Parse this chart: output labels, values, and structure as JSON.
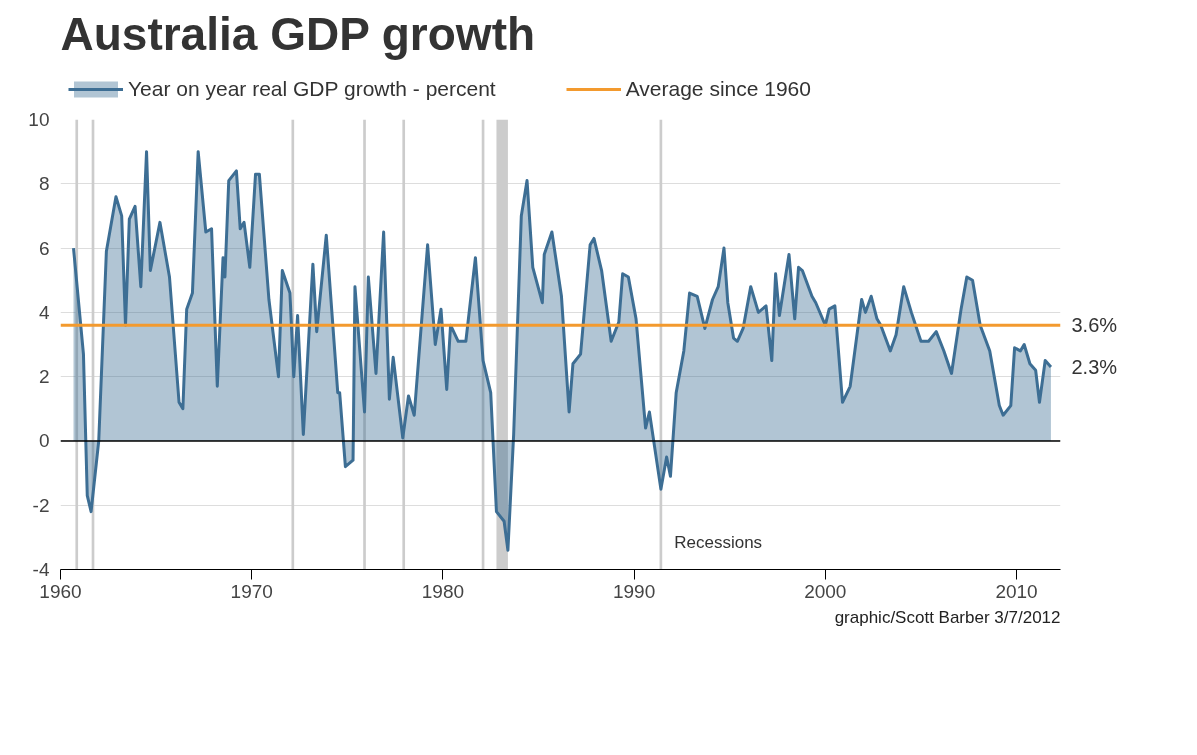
{
  "chart_data": {
    "type": "area",
    "title": "Australia GDP growth",
    "series": [
      {
        "name": "Year on year real GDP growth - percent",
        "color": "#3d6e94",
        "x": [
          1960.68,
          1961.2,
          1961.4,
          1961.6,
          1962.0,
          1962.4,
          1962.9,
          1963.2,
          1963.4,
          1963.6,
          1963.9,
          1964.2,
          1964.5,
          1964.7,
          1965.2,
          1965.7,
          1966.2,
          1966.4,
          1966.6,
          1966.9,
          1967.2,
          1967.6,
          1967.9,
          1968.2,
          1968.5,
          1968.6,
          1968.8,
          1969.2,
          1969.4,
          1969.6,
          1969.9,
          1970.2,
          1970.4,
          1970.9,
          1971.4,
          1971.6,
          1972.0,
          1972.2,
          1972.4,
          1972.7,
          1973.2,
          1973.4,
          1973.9,
          1974.5,
          1974.6,
          1974.9,
          1975.3,
          1975.4,
          1975.9,
          1976.1,
          1976.5,
          1976.9,
          1977.2,
          1977.4,
          1977.9,
          1978.2,
          1978.5,
          1979.2,
          1979.6,
          1979.9,
          1980.2,
          1980.4,
          1980.8,
          1981.2,
          1981.7,
          1982.1,
          1982.5,
          1982.8,
          1983.2,
          1983.4,
          1983.7,
          1984.1,
          1984.4,
          1984.7,
          1985.2,
          1985.3,
          1985.7,
          1986.2,
          1986.6,
          1986.8,
          1987.2,
          1987.7,
          1987.9,
          1988.3,
          1988.8,
          1989.2,
          1989.4,
          1989.7,
          1990.1,
          1990.6,
          1990.8,
          1991.4,
          1991.7,
          1991.9,
          1992.2,
          1992.6,
          1992.9,
          1993.3,
          1993.7,
          1994.1,
          1994.4,
          1994.7,
          1994.9,
          1995.2,
          1995.4,
          1995.7,
          1996.1,
          1996.5,
          1996.9,
          1997.2,
          1997.4,
          1997.6,
          1998.1,
          1998.4,
          1998.6,
          1998.8,
          1999.3,
          1999.5,
          2000.0,
          2000.2,
          2000.5,
          2000.9,
          2001.3,
          2001.9,
          2002.1,
          2002.4,
          2002.7,
          2002.9,
          2003.4,
          2003.7,
          2004.1,
          2004.5,
          2005.0,
          2005.4,
          2005.8,
          2006.2,
          2006.6,
          2007.1,
          2007.4,
          2007.7,
          2008.1,
          2008.6,
          2009.1,
          2009.3,
          2009.7,
          2009.9,
          2010.2,
          2010.4,
          2010.7,
          2011.0,
          2011.2,
          2011.5,
          2011.8
        ],
        "values": [
          6.0,
          2.7,
          -1.7,
          -2.2,
          0.0,
          5.9,
          7.6,
          7.0,
          3.6,
          6.9,
          7.3,
          4.8,
          9.0,
          5.3,
          6.8,
          5.1,
          1.2,
          1.0,
          4.1,
          4.6,
          9.0,
          6.5,
          6.6,
          1.7,
          5.7,
          5.1,
          8.1,
          8.4,
          6.6,
          6.8,
          5.4,
          8.3,
          8.3,
          4.4,
          2.0,
          5.3,
          4.6,
          2.0,
          3.9,
          0.2,
          5.5,
          3.4,
          6.4,
          1.5,
          1.5,
          -0.8,
          -0.6,
          4.8,
          0.9,
          5.1,
          2.1,
          6.5,
          1.3,
          2.6,
          0.1,
          1.4,
          0.8,
          6.1,
          3.0,
          4.1,
          1.6,
          3.6,
          3.1,
          3.1,
          5.7,
          2.5,
          1.5,
          -2.2,
          -2.5,
          -3.4,
          0.2,
          7.0,
          8.1,
          5.4,
          4.3,
          5.8,
          6.5,
          4.5,
          0.9,
          2.4,
          2.7,
          6.1,
          6.3,
          5.3,
          3.1,
          3.7,
          5.2,
          5.1,
          3.8,
          0.4,
          0.9,
          -1.5,
          -0.5,
          -1.1,
          1.5,
          2.8,
          4.6,
          4.5,
          3.5,
          4.4,
          4.8,
          6.0,
          4.3,
          3.2,
          3.1,
          3.5,
          4.8,
          4.0,
          4.2,
          2.5,
          5.2,
          3.9,
          5.8,
          3.8,
          5.4,
          5.3,
          4.5,
          4.3,
          3.6,
          4.1,
          4.2,
          1.2,
          1.7,
          4.4,
          4.0,
          4.5,
          3.8,
          3.6,
          2.8,
          3.3,
          4.8,
          4.0,
          3.1,
          3.1,
          3.4,
          2.8,
          2.1,
          4.1,
          5.1,
          5.0,
          3.6,
          2.8,
          1.1,
          0.8,
          1.1,
          2.9,
          2.8,
          3.0,
          2.4,
          2.2,
          1.2,
          2.5,
          2.3
        ],
        "value_labels": [
          null,
          null,
          null,
          null,
          null,
          null,
          null,
          null,
          null,
          null,
          null,
          null,
          null,
          null,
          null,
          null,
          null,
          null,
          null,
          null,
          null,
          null,
          null,
          null,
          null,
          null,
          null,
          null,
          null,
          null,
          null,
          null,
          null,
          null,
          null,
          null,
          null,
          null,
          null,
          null,
          null,
          null,
          null,
          null,
          null,
          null,
          null,
          null,
          null,
          null,
          null,
          null,
          null,
          null,
          null,
          null,
          null,
          null,
          null,
          null,
          null,
          null,
          null,
          null,
          null,
          null,
          null,
          null,
          null,
          null,
          null,
          null,
          null,
          null,
          null,
          null,
          null,
          null,
          null,
          null,
          null,
          null,
          null,
          null,
          null,
          null,
          null,
          null,
          null,
          null,
          null,
          null,
          null,
          null,
          null,
          null,
          null,
          null,
          null,
          null,
          null,
          null,
          null,
          null,
          null,
          null,
          null,
          null,
          null,
          null,
          null,
          null,
          null,
          null,
          null,
          null,
          null,
          null,
          null,
          null,
          null,
          null,
          null,
          null,
          null,
          null,
          null,
          null,
          null,
          null,
          null,
          null,
          null,
          null,
          null,
          null,
          null,
          null,
          null,
          null,
          null,
          null,
          null,
          null,
          null,
          null,
          null,
          null,
          null,
          null,
          null,
          null,
          "2.3%"
        ]
      }
    ],
    "xlim": [
      1960,
      2012.3
    ],
    "xticks": [
      1960,
      1970,
      1980,
      1990,
      2000,
      2010
    ],
    "ylim": [
      -4,
      10
    ],
    "yticks": [
      -4,
      -2,
      0,
      2,
      4,
      6,
      8,
      10
    ],
    "grid": "y",
    "legend": "top",
    "ref_lines": [
      {
        "axis": "y",
        "value": 3.6,
        "label": "Average since 1960",
        "color": "#f39a2e"
      },
      {
        "axis": "y",
        "value": 0,
        "color": "#000000"
      }
    ],
    "bands": [
      {
        "axis": "x",
        "from": 1960.78,
        "to": 1960.92,
        "color": "#cccccc"
      },
      {
        "axis": "x",
        "from": 1961.63,
        "to": 1961.77,
        "color": "#cccccc"
      },
      {
        "axis": "x",
        "from": 1972.08,
        "to": 1972.22,
        "color": "#cccccc"
      },
      {
        "axis": "x",
        "from": 1975.83,
        "to": 1975.97,
        "color": "#cccccc"
      },
      {
        "axis": "x",
        "from": 1977.88,
        "to": 1978.02,
        "color": "#cccccc"
      },
      {
        "axis": "x",
        "from": 1982.03,
        "to": 1982.17,
        "color": "#cccccc"
      },
      {
        "axis": "x",
        "from": 1982.8,
        "to": 1983.4,
        "color": "#cccccc"
      },
      {
        "axis": "x",
        "from": 1991.33,
        "to": 1991.47,
        "color": "#cccccc",
        "label": "Recessions"
      }
    ],
    "annotations": [
      {
        "text": "3.6%",
        "x": 2012.3,
        "y": 3.6
      },
      "graphic/Scott Barber 3/7/2012"
    ]
  }
}
